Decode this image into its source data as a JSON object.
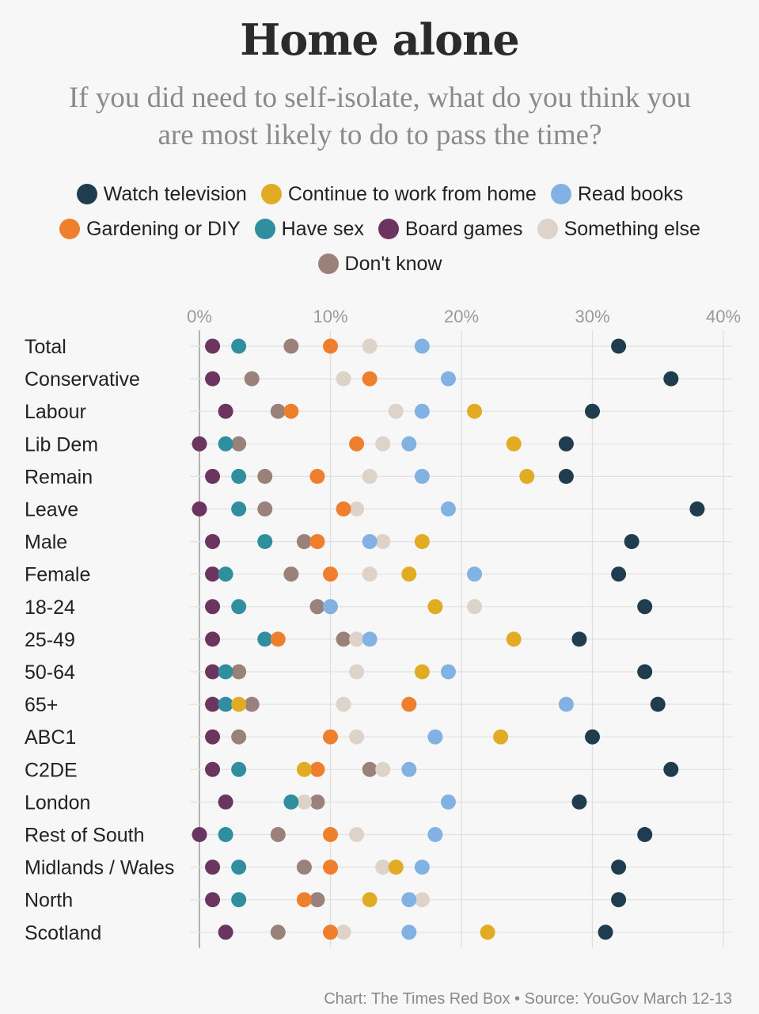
{
  "title": "Home alone",
  "subtitle": "If you did need to self-isolate, what do you think you are most likely to do to pass the time?",
  "footer": "Chart: The Times Red Box • Source: YouGov March 12-13",
  "chart_data": {
    "type": "scatter",
    "title": "Home alone",
    "subtitle": "If you did need to self-isolate, what do you think you are most likely to do to pass the time?",
    "x_ticks": [
      "0%",
      "10%",
      "20%",
      "30%",
      "40%"
    ],
    "xlim": [
      0,
      40
    ],
    "grid": true,
    "legend_position": "top",
    "categories": [
      "Total",
      "Conservative",
      "Labour",
      "Lib Dem",
      "Remain",
      "Leave",
      "Male",
      "Female",
      "18-24",
      "25-49",
      "50-64",
      "65+",
      "ABC1",
      "C2DE",
      "London",
      "Rest of South",
      "Midlands / Wales",
      "North",
      "Scotland"
    ],
    "series": [
      {
        "name": "Watch television",
        "color": "#1f3d4e",
        "values": [
          32,
          36,
          30,
          28,
          28,
          38,
          33,
          32,
          34,
          29,
          34,
          35,
          30,
          36,
          29,
          34,
          32,
          32,
          31
        ]
      },
      {
        "name": "Continue to work from home",
        "color": "#e1ac24",
        "values": [
          null,
          null,
          21,
          24,
          25,
          null,
          17,
          16,
          18,
          24,
          17,
          3,
          23,
          8,
          null,
          null,
          15,
          13,
          22
        ]
      },
      {
        "name": "Read books",
        "color": "#82b1e3",
        "values": [
          17,
          19,
          17,
          16,
          17,
          19,
          13,
          21,
          10,
          13,
          19,
          28,
          18,
          16,
          19,
          18,
          17,
          16,
          16
        ]
      },
      {
        "name": "Gardening or DIY",
        "color": "#f07f2d",
        "values": [
          10,
          13,
          7,
          12,
          9,
          11,
          9,
          10,
          null,
          6,
          null,
          16,
          10,
          9,
          null,
          10,
          10,
          8,
          10
        ]
      },
      {
        "name": "Have sex",
        "color": "#2f8f9e",
        "values": [
          3,
          null,
          null,
          2,
          3,
          3,
          5,
          2,
          3,
          5,
          2,
          2,
          null,
          3,
          7,
          2,
          3,
          3,
          null
        ]
      },
      {
        "name": "Board games",
        "color": "#6b3560",
        "values": [
          1,
          1,
          2,
          0,
          1,
          0,
          1,
          1,
          1,
          1,
          1,
          1,
          1,
          1,
          2,
          0,
          1,
          1,
          2
        ]
      },
      {
        "name": "Something else",
        "color": "#ddd3c8",
        "values": [
          13,
          11,
          15,
          14,
          13,
          12,
          14,
          13,
          21,
          12,
          12,
          11,
          12,
          14,
          8,
          12,
          14,
          17,
          11
        ]
      },
      {
        "name": "Don't know",
        "color": "#9a827a",
        "values": [
          7,
          4,
          6,
          3,
          5,
          5,
          8,
          7,
          9,
          11,
          3,
          4,
          3,
          13,
          9,
          6,
          8,
          9,
          6
        ]
      }
    ]
  }
}
